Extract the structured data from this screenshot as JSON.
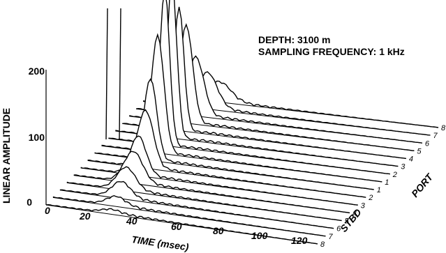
{
  "chart_data": {
    "type": "line",
    "projection": "3d-waterfall",
    "annotations": [
      "DEPTH:  3100 m",
      "SAMPLING FREQUENCY:  1 kHz"
    ],
    "xlabel": "TIME (msec)",
    "ylabel": "LINEAR AMPLITUDE",
    "x_ticks": [
      "0",
      "20",
      "40",
      "60",
      "80",
      "100",
      "120"
    ],
    "y_ticks": [
      "0",
      "100",
      "200"
    ],
    "xlim": [
      0,
      125
    ],
    "ylim": [
      0,
      230
    ],
    "depth_axis": {
      "stbd_label": "STBD",
      "port_label": "PORT",
      "stbd_ticks": [
        "8",
        "7",
        "6",
        "5",
        "4",
        "3",
        "2",
        "1"
      ],
      "port_ticks": [
        "1",
        "2",
        "3",
        "4",
        "5",
        "6",
        "7",
        "8"
      ]
    },
    "series": [
      {
        "peaks": [
          {
            "t": 30,
            "a": 6,
            "w": 6
          }
        ]
      },
      {
        "peaks": [
          {
            "t": 29,
            "a": 14,
            "w": 6
          }
        ]
      },
      {
        "peaks": [
          {
            "t": 28,
            "a": 25,
            "w": 6
          }
        ]
      },
      {
        "peaks": [
          {
            "t": 27,
            "a": 35,
            "w": 6
          }
        ]
      },
      {
        "peaks": [
          {
            "t": 27,
            "a": 48,
            "w": 6
          }
        ]
      },
      {
        "peaks": [
          {
            "t": 26,
            "a": 60,
            "w": 5
          }
        ]
      },
      {
        "peaks": [
          {
            "t": 26,
            "a": 88,
            "w": 5
          }
        ]
      },
      {
        "peaks": [
          {
            "t": 25,
            "a": 125,
            "w": 4
          }
        ]
      },
      {
        "peaks": [
          {
            "t": 25,
            "a": 180,
            "w": 4
          }
        ]
      },
      {
        "peaks": [
          {
            "t": 25,
            "a": 240,
            "w": 3
          }
        ]
      },
      {
        "peaks": [
          {
            "t": 25,
            "a": 240,
            "w": 3
          }
        ]
      },
      {
        "peaks": [
          {
            "t": 25,
            "a": 190,
            "w": 3
          }
        ]
      },
      {
        "peaks": [
          {
            "t": 25,
            "a": 150,
            "w": 4
          }
        ]
      },
      {
        "peaks": [
          {
            "t": 26,
            "a": 90,
            "w": 5
          }
        ]
      },
      {
        "peaks": [
          {
            "t": 28,
            "a": 55,
            "w": 6
          }
        ]
      },
      {
        "peaks": [
          {
            "t": 30,
            "a": 30,
            "w": 7
          }
        ]
      }
    ]
  }
}
